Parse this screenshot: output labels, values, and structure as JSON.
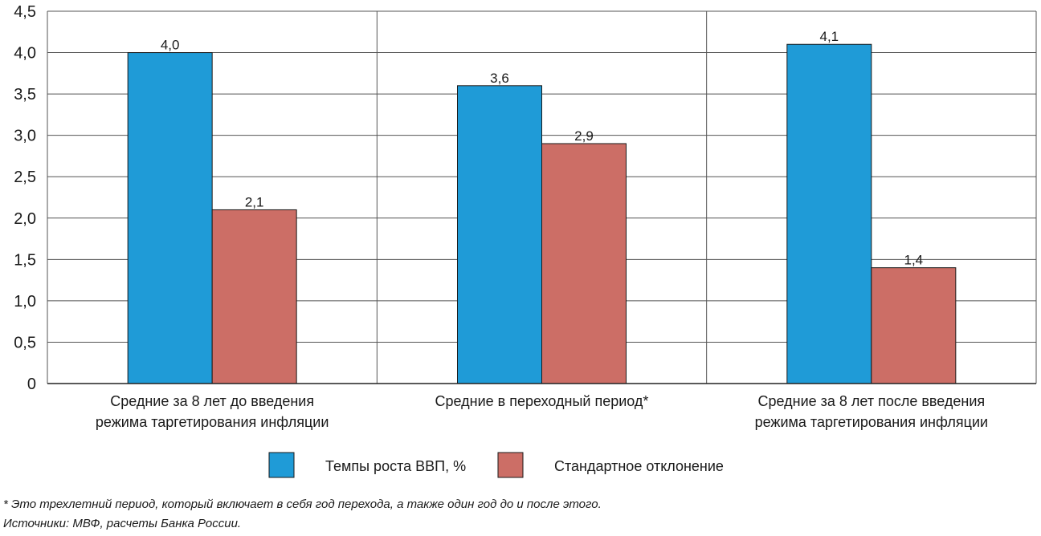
{
  "chart_data": {
    "type": "bar",
    "categories": [
      [
        "Средние за 8 лет до введения",
        "режима таргетирования инфляции"
      ],
      [
        "Средние в переходный период*"
      ],
      [
        "Средние за 8 лет после введения",
        "режима таргетирования инфляции"
      ]
    ],
    "series": [
      {
        "name": "Темпы роста ВВП, %",
        "values": [
          4.0,
          3.6,
          4.1
        ],
        "labels": [
          "4,0",
          "3,6",
          "4,1"
        ],
        "color": "#1f9bd7"
      },
      {
        "name": "Стандартное отклонение",
        "values": [
          2.1,
          2.9,
          1.4
        ],
        "labels": [
          "2,1",
          "2,9",
          "1,4"
        ],
        "color": "#cc6e66"
      }
    ],
    "ylim": [
      0,
      4.5
    ],
    "yticks": [
      0,
      0.5,
      1.0,
      1.5,
      2.0,
      2.5,
      3.0,
      3.5,
      4.0,
      4.5
    ],
    "ytick_labels": [
      "0",
      "0,5",
      "1,0",
      "1,5",
      "2,0",
      "2,5",
      "3,0",
      "3,5",
      "4,0",
      "4,5"
    ],
    "grid": true,
    "legend_position": "bottom"
  },
  "footnotes": {
    "note": "* Это трехлетний период, который включает в себя год перехода, а также один год до и после этого.",
    "sources": "Источники: МВФ, расчеты Банка России."
  }
}
